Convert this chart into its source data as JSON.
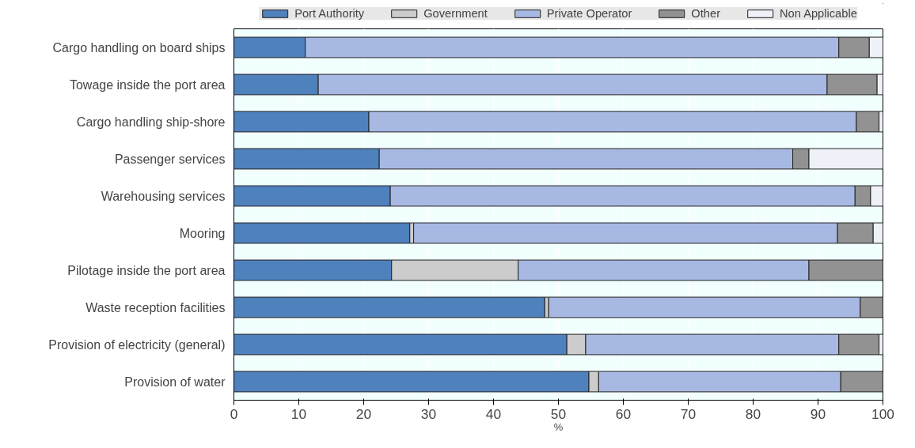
{
  "chart_data": {
    "type": "bar",
    "orientation": "horizontal",
    "stacked": true,
    "xlabel": "%",
    "categories": [
      "Cargo handling on board ships",
      "Towage inside the port area",
      "Cargo handling ship-shore",
      "Passenger services",
      "Warehousing services",
      "Mooring",
      "Pilotage inside the port area",
      "Waste reception facilities",
      "Provision of electricity (general)",
      "Provision of water"
    ],
    "series": [
      {
        "name": "Port Authority",
        "color": "#4f81bd",
        "values": [
          11,
          13,
          20.8,
          22.4,
          24.1,
          27.1,
          24.3,
          47.9,
          51.3,
          54.7
        ]
      },
      {
        "name": "Government",
        "color": "#cccccc",
        "values": [
          0,
          0,
          0,
          0,
          0,
          0.6,
          19.5,
          0.6,
          2.9,
          1.5
        ]
      },
      {
        "name": "Private Operator",
        "color": "#a7b9e3",
        "values": [
          82.2,
          78.4,
          75.1,
          63.7,
          71.6,
          65.3,
          44.8,
          48.0,
          39.0,
          37.3
        ]
      },
      {
        "name": "Other",
        "color": "#929292",
        "values": [
          4.7,
          7.7,
          3.5,
          2.5,
          2.4,
          5.5,
          11.4,
          3.5,
          6.2,
          6.5
        ]
      },
      {
        "name": "Non Applicable",
        "color": "#eef1f8",
        "values": [
          2.1,
          0.9,
          0.6,
          11.4,
          1.9,
          1.5,
          0,
          0,
          0.6,
          0
        ]
      }
    ],
    "xlim": [
      0,
      100
    ],
    "xticks": [
      0,
      10,
      20,
      30,
      40,
      50,
      60,
      70,
      80,
      90,
      100
    ],
    "grid": "x",
    "legend": "top"
  }
}
